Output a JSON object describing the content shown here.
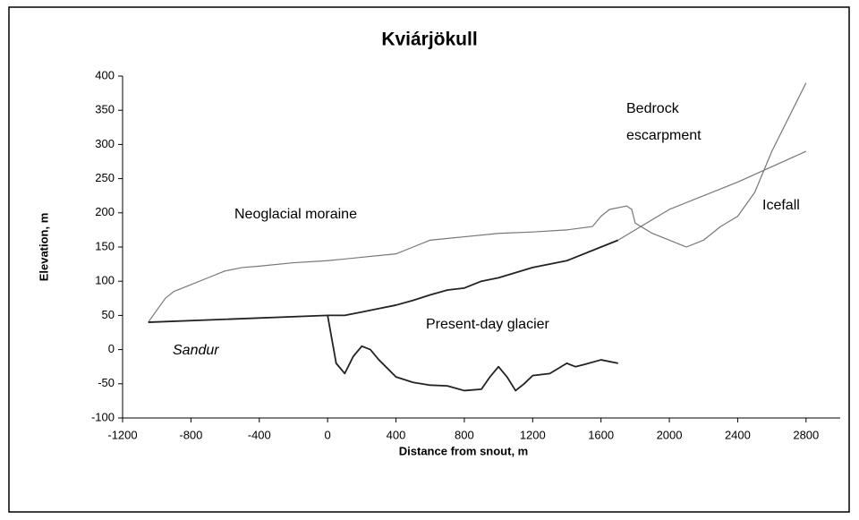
{
  "chart_data": {
    "type": "line",
    "title": "Kviárjökull",
    "xlabel": "Distance from snout, m",
    "ylabel": "Elevation, m",
    "xlim": [
      -1200,
      3000
    ],
    "ylim": [
      -100,
      400
    ],
    "xticks": [
      -1200,
      -800,
      -400,
      0,
      400,
      800,
      1200,
      1600,
      2000,
      2400,
      2800
    ],
    "yticks": [
      -100,
      -50,
      0,
      50,
      100,
      150,
      200,
      250,
      300,
      350,
      400
    ],
    "grid": false,
    "series": [
      {
        "color": "#777777",
        "width": 1.2,
        "x": [
          -1050,
          -950,
          -900,
          -800,
          -700,
          -600,
          -500,
          -400,
          -200,
          0,
          200,
          400,
          500,
          600,
          800,
          1000,
          1200,
          1400,
          1550,
          1600,
          1650,
          1750,
          1780,
          1800,
          1900,
          2000,
          2100,
          2200,
          2300,
          2400,
          2500,
          2600,
          2800
        ],
        "values": [
          40,
          75,
          85,
          95,
          105,
          115,
          120,
          122,
          127,
          130,
          135,
          140,
          150,
          160,
          165,
          170,
          172,
          175,
          180,
          195,
          205,
          210,
          205,
          185,
          170,
          160,
          150,
          160,
          180,
          195,
          230,
          290,
          390
        ]
      },
      {
        "color": "#222222",
        "width": 1.8,
        "x": [
          0,
          50,
          100,
          150,
          200,
          250,
          300,
          400,
          500,
          600,
          700,
          800,
          900,
          950,
          1000,
          1050,
          1100,
          1150,
          1200,
          1300,
          1400,
          1450,
          1500,
          1600,
          1700
        ],
        "values": [
          50,
          -20,
          -35,
          -10,
          5,
          0,
          -15,
          -40,
          -48,
          -52,
          -53,
          -60,
          -58,
          -40,
          -25,
          -40,
          -60,
          -50,
          -38,
          -35,
          -20,
          -25,
          -22,
          -15,
          -20
        ]
      },
      {
        "color": "#222222",
        "width": 1.8,
        "x": [
          -1050,
          0,
          100,
          200,
          300,
          400,
          500,
          600,
          700,
          800,
          900,
          1000,
          1200,
          1400,
          1600,
          1700
        ],
        "values": [
          40,
          50,
          50,
          55,
          60,
          65,
          72,
          80,
          87,
          90,
          100,
          105,
          120,
          130,
          150,
          160
        ]
      },
      {
        "color": "#777777",
        "width": 1.2,
        "x": [
          1700,
          2000,
          2400,
          2800
        ],
        "values": [
          160,
          205,
          245,
          290
        ]
      }
    ],
    "annotations": [
      "Neoglacial moraine",
      "Bedrock",
      "escarpment",
      "Icefall",
      "Present-day glacier",
      "Sandur"
    ]
  }
}
